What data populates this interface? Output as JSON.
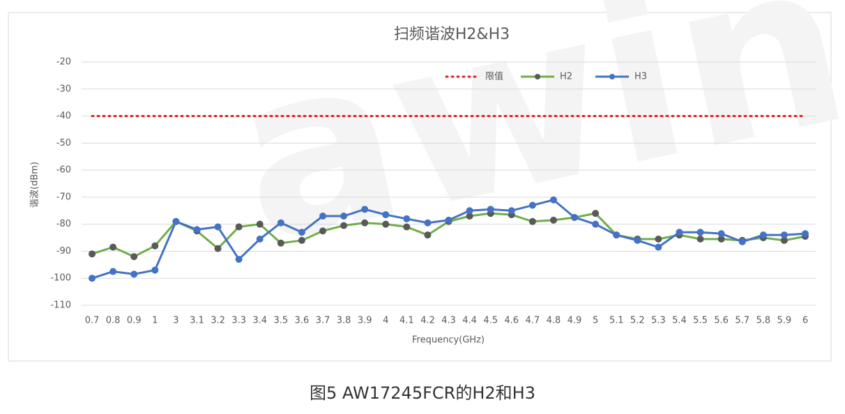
{
  "chart_data": {
    "type": "line",
    "title": "扫频谐波H2&H3",
    "xlabel": "Frequency(GHz)",
    "ylabel": "谐波(dBm)",
    "watermark": "awinic",
    "categories": [
      "0.7",
      "0.8",
      "0.9",
      "1",
      "3",
      "3.1",
      "3.2",
      "3.3",
      "3.4",
      "3.5",
      "3.6",
      "3.7",
      "3.8",
      "3.9",
      "4",
      "4.1",
      "4.2",
      "4.3",
      "4.4",
      "4.5",
      "4.6",
      "4.7",
      "4.8",
      "4.9",
      "5",
      "5.1",
      "5.2",
      "5.3",
      "5.4",
      "5.5",
      "5.6",
      "5.7",
      "5.8",
      "5.9",
      "6"
    ],
    "series": [
      {
        "name": "限值",
        "color": "#e02020",
        "line_style": "dotted",
        "markers": false,
        "values": [
          -40,
          -40,
          -40,
          -40,
          -40,
          -40,
          -40,
          -40,
          -40,
          -40,
          -40,
          -40,
          -40,
          -40,
          -40,
          -40,
          -40,
          -40,
          -40,
          -40,
          -40,
          -40,
          -40,
          -40,
          -40,
          -40,
          -40,
          -40,
          -40,
          -40,
          -40,
          -40,
          -40,
          -40,
          -40
        ]
      },
      {
        "name": "H2",
        "color": "#70ad47",
        "line_style": "solid",
        "markers": true,
        "values": [
          -91,
          -88.5,
          -92,
          -88,
          -79,
          -82.5,
          -89,
          -81,
          -80,
          -87,
          -86,
          -82.5,
          -80.5,
          -79.5,
          -80,
          -81,
          -84,
          -79,
          -77,
          -76,
          -76.5,
          -79,
          -78.5,
          -77.5,
          -76,
          -84,
          -85.5,
          -85.5,
          -84,
          -85.5,
          -85.5,
          -86,
          -85,
          -86,
          -84.5
        ]
      },
      {
        "name": "H3",
        "color": "#4472c4",
        "line_style": "solid",
        "markers": true,
        "values": [
          -100,
          -97.5,
          -98.5,
          -97,
          -79,
          -82,
          -81,
          -93,
          -85.5,
          -79.5,
          -83,
          -77,
          -77,
          -74.5,
          -76.5,
          -78,
          -79.5,
          -78.5,
          -75,
          -74.5,
          -75,
          -73,
          -71,
          -77.5,
          -80,
          -84,
          -86,
          -88.5,
          -83,
          -83,
          -83.5,
          -86.5,
          -84,
          -84,
          -83.5
        ]
      }
    ],
    "ylim": [
      -110,
      -20
    ],
    "yticks": [
      -20,
      -30,
      -40,
      -50,
      -60,
      -70,
      -80,
      -90,
      -100,
      -110
    ],
    "grid": true,
    "legend": "top-right"
  },
  "caption": "图5 AW17245FCR的H2和H3"
}
